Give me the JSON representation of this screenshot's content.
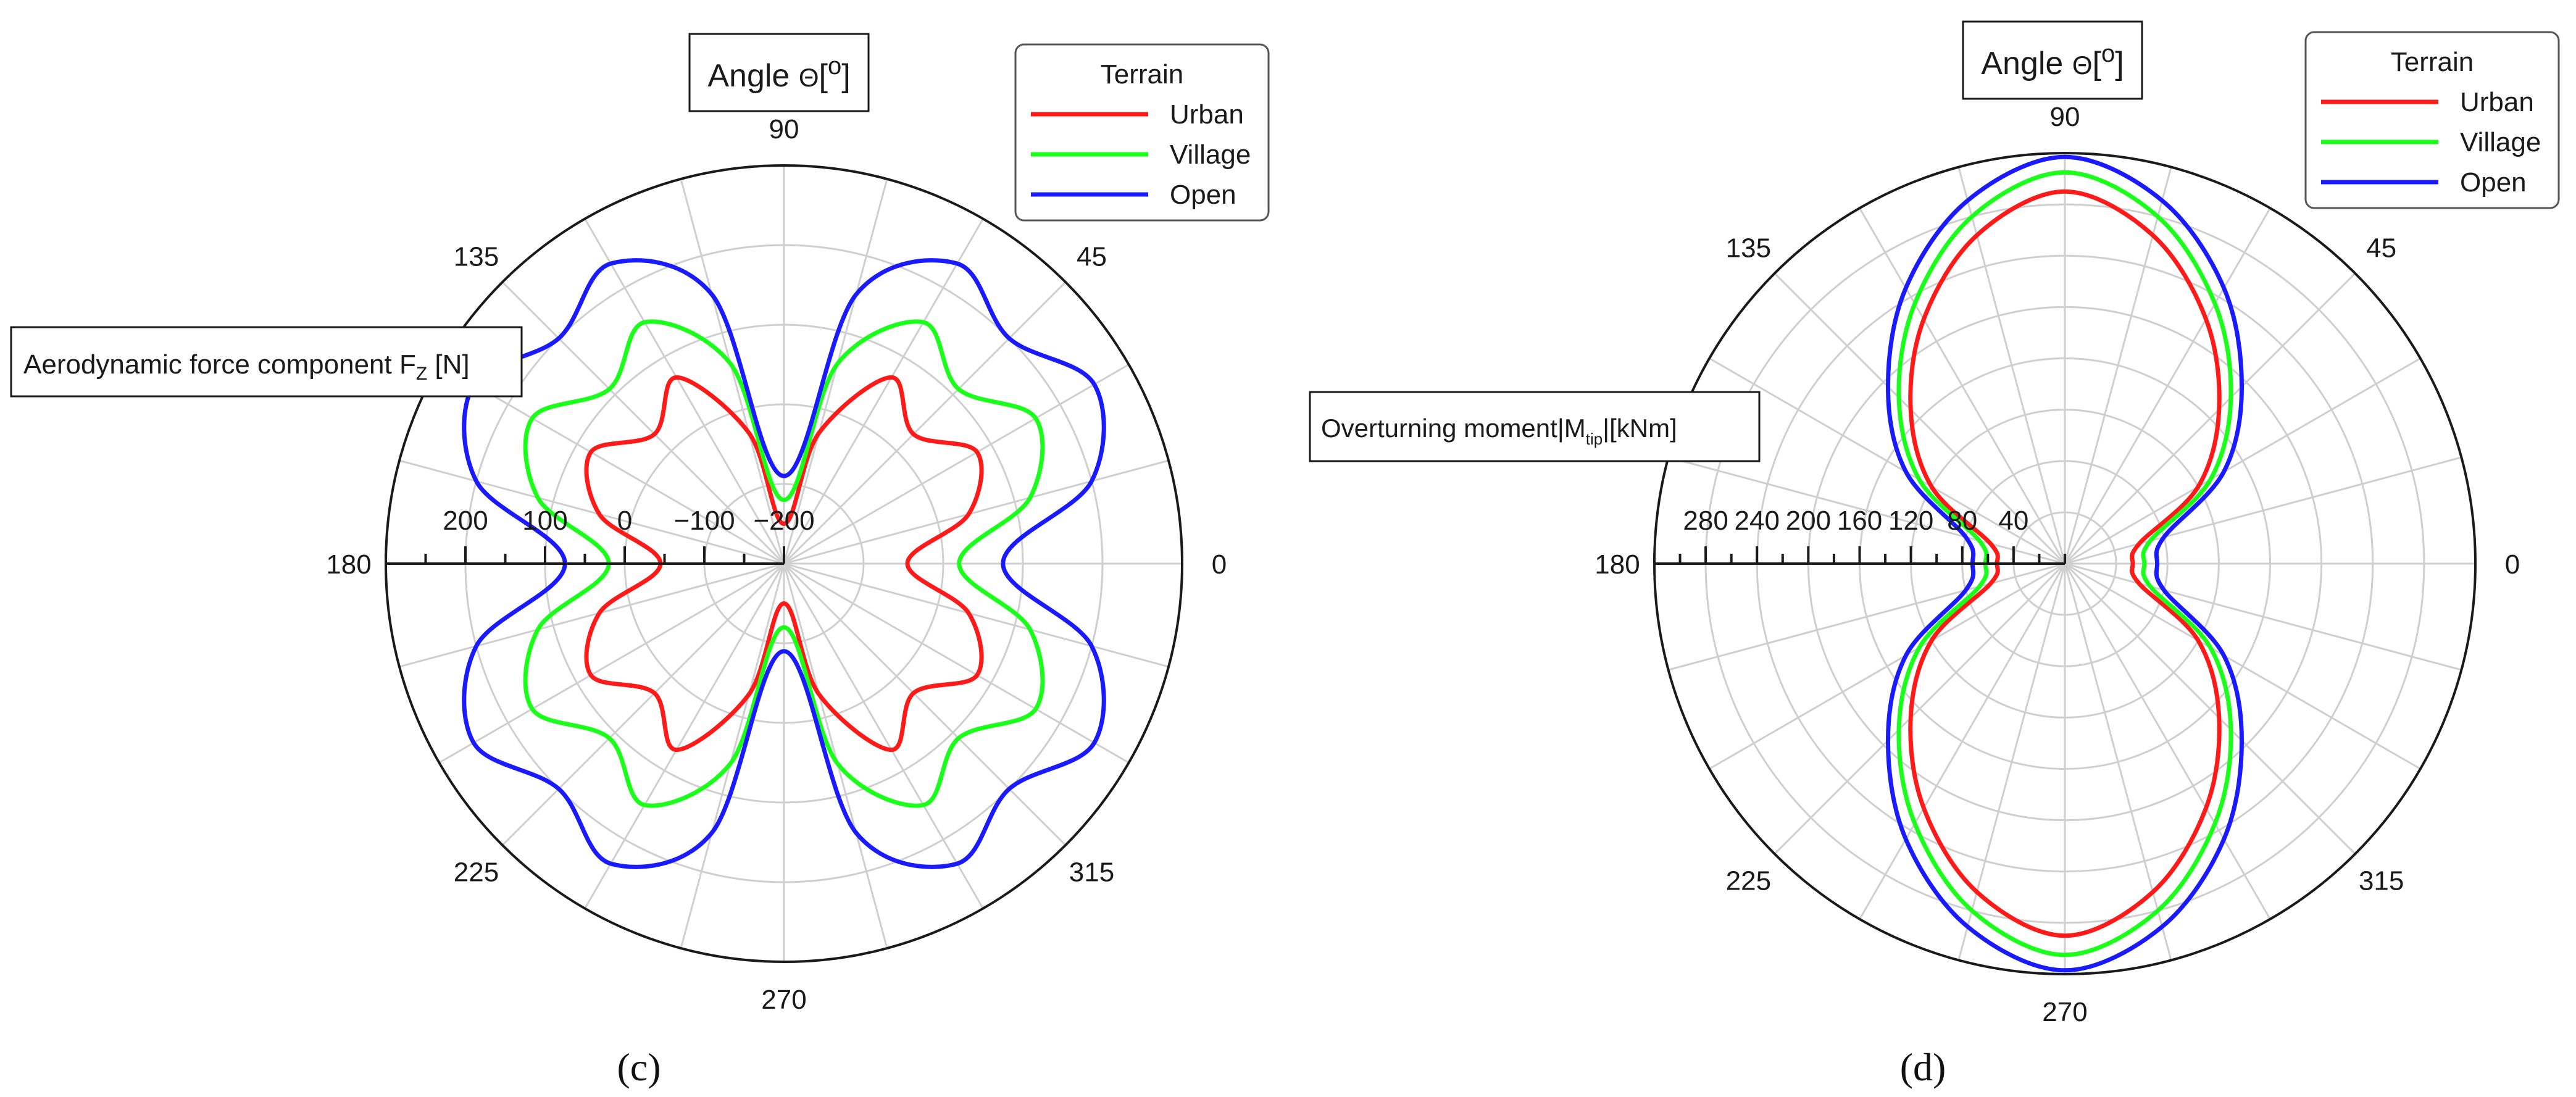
{
  "chart_data": [
    {
      "type": "polar-line",
      "panel": "(c)",
      "title": "Angle Θ[°]",
      "title_prefix": "Angle ",
      "title_symbol": "Θ",
      "title_unit_open": "[",
      "title_unit_deg": "o",
      "title_unit_close": "]",
      "radial_label": "Aerodynamic force component F",
      "radial_label_sub": "Z",
      "radial_label_unit": " [N]",
      "r_range": [
        -200,
        300
      ],
      "r_ticks": [
        -200,
        -100,
        0,
        100,
        200
      ],
      "r_tick_labels": [
        "−200",
        "−100",
        "0",
        "100",
        "200"
      ],
      "angle_ticks": [
        0,
        45,
        90,
        135,
        180,
        225,
        270,
        315
      ],
      "angle_labels": [
        "0",
        "45",
        "90",
        "135",
        "180",
        "225",
        "270",
        "315"
      ],
      "legend_title": "Terrain",
      "legend_position": "top-right",
      "series": [
        {
          "name": "Urban",
          "color": "#ff1a1a",
          "r": {
            "theta": [
              0,
              15,
              30,
              45,
              60,
              75,
              90,
              105,
              120,
              135,
              150,
              165,
              180,
              195,
              210,
              225,
              240,
              255,
              270,
              285,
              300,
              315,
              330,
              345
            ],
            "values": [
              -45,
              40,
              80,
              30,
              70,
              -30,
              -150,
              -30,
              70,
              30,
              80,
              40,
              -45,
              40,
              80,
              30,
              70,
              -30,
              -150,
              -30,
              70,
              30,
              80,
              40
            ]
          }
        },
        {
          "name": "Village",
          "color": "#1aff1a",
          "r": {
            "theta": [
              0,
              15,
              30,
              45,
              60,
              75,
              90,
              105,
              120,
              135,
              150,
              165,
              180,
              195,
              210,
              225,
              240,
              255,
              270,
              285,
              300,
              315,
              330,
              345
            ],
            "values": [
              20,
              120,
              165,
              110,
              150,
              60,
              -120,
              60,
              150,
              110,
              165,
              120,
              20,
              120,
              165,
              110,
              150,
              60,
              -120,
              60,
              150,
              110,
              165,
              120
            ]
          }
        },
        {
          "name": "Open",
          "color": "#1a1aff",
          "r": {
            "theta": [
              0,
              15,
              30,
              45,
              60,
              75,
              90,
              105,
              120,
              135,
              150,
              165,
              180,
              195,
              210,
              225,
              240,
              255,
              270,
              285,
              300,
              315,
              330,
              345
            ],
            "values": [
              75,
              200,
              250,
              200,
              235,
              150,
              -90,
              150,
              235,
              200,
              250,
              200,
              75,
              200,
              250,
              200,
              235,
              150,
              -90,
              150,
              235,
              200,
              250,
              200
            ]
          }
        }
      ]
    },
    {
      "type": "polar-line",
      "panel": "(d)",
      "title": "Angle Θ[°]",
      "title_prefix": "Angle ",
      "title_symbol": "Θ",
      "title_unit_open": "[",
      "title_unit_deg": "o",
      "title_unit_close": "]",
      "radial_label": "Overturning moment|M",
      "radial_label_sub": "tip",
      "radial_label_unit": "|[kNm]",
      "r_range": [
        0,
        320
      ],
      "r_ticks": [
        40,
        80,
        120,
        160,
        200,
        240,
        280
      ],
      "r_tick_labels": [
        "40",
        "80",
        "120",
        "160",
        "200",
        "240",
        "280"
      ],
      "angle_ticks": [
        0,
        45,
        90,
        135,
        180,
        225,
        270,
        315
      ],
      "angle_labels": [
        "0",
        "45",
        "90",
        "135",
        "180",
        "225",
        "270",
        "315"
      ],
      "legend_title": "Terrain",
      "legend_position": "top-right",
      "series": [
        {
          "name": "Urban",
          "color": "#ff1a1a",
          "r": {
            "theta": [
              0,
              15,
              30,
              45,
              60,
              75,
              90,
              105,
              120,
              135,
              150,
              165,
              180,
              195,
              210,
              225,
              240,
              255,
              270,
              285,
              300,
              315,
              330,
              345
            ],
            "values": [
              53,
              60,
              120,
              170,
              220,
              265,
              290,
              265,
              220,
              170,
              120,
              60,
              53,
              60,
              120,
              170,
              220,
              265,
              290,
              265,
              220,
              170,
              120,
              60
            ]
          }
        },
        {
          "name": "Village",
          "color": "#1aff1a",
          "r": {
            "theta": [
              0,
              15,
              30,
              45,
              60,
              75,
              90,
              105,
              120,
              135,
              150,
              165,
              180,
              195,
              210,
              225,
              240,
              255,
              270,
              285,
              300,
              315,
              330,
              345
            ],
            "values": [
              62,
              69,
              131,
              183,
              234,
              280,
              305,
              280,
              234,
              183,
              131,
              69,
              62,
              69,
              131,
              183,
              234,
              280,
              305,
              280,
              234,
              183,
              131,
              69
            ]
          }
        },
        {
          "name": "Open",
          "color": "#1a1aff",
          "r": {
            "theta": [
              0,
              15,
              30,
              45,
              60,
              75,
              90,
              105,
              120,
              135,
              150,
              165,
              180,
              195,
              210,
              225,
              240,
              255,
              270,
              285,
              300,
              315,
              330,
              345
            ],
            "values": [
              72,
              80,
              143,
              195,
              248,
              293,
              317,
              293,
              248,
              195,
              143,
              80,
              72,
              80,
              143,
              195,
              248,
              293,
              317,
              293,
              248,
              195,
              143,
              80
            ]
          }
        }
      ]
    }
  ]
}
